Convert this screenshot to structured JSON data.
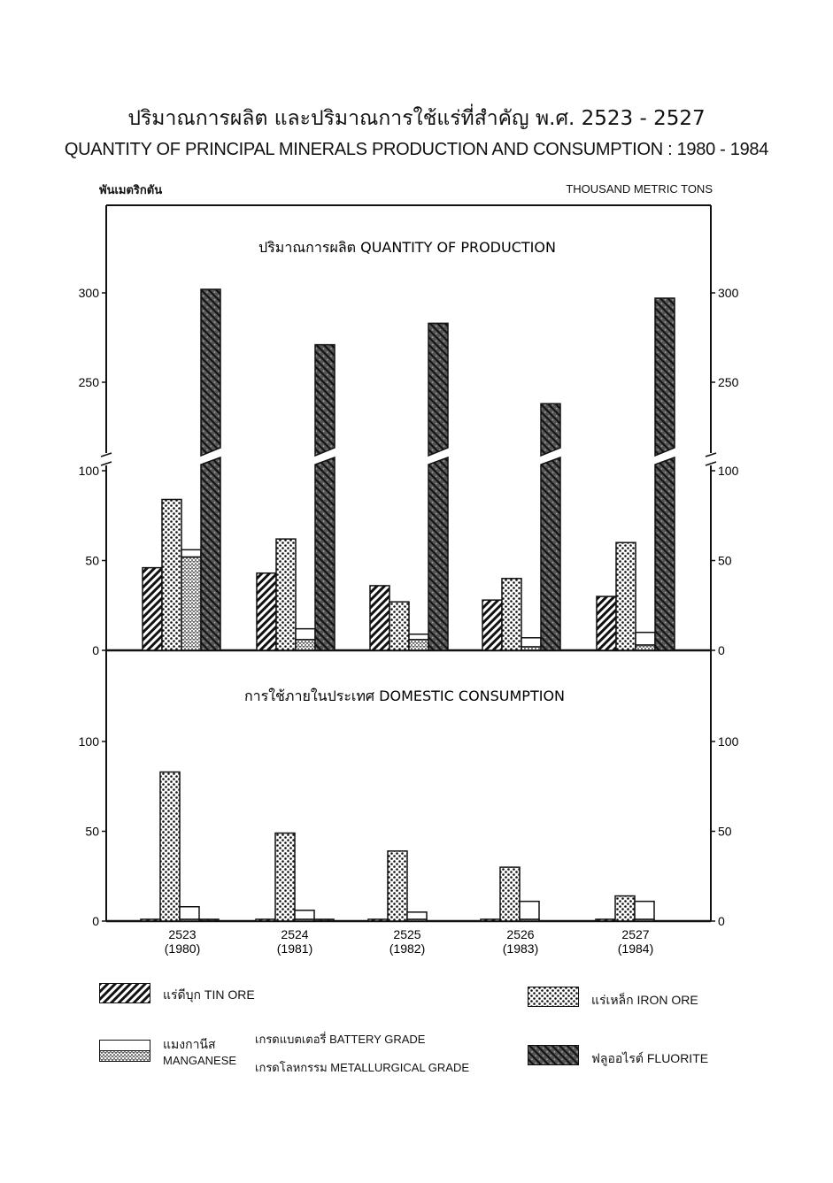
{
  "title_th": "ปริมาณการผลิต และปริมาณการใช้แร่ที่สำคัญ พ.ศ. 2523 - 2527",
  "title_en": "QUANTITY OF PRINCIPAL MINERALS PRODUCTION AND CONSUMPTION : 1980 - 1984",
  "unit_th": "พันเมตริกตัน",
  "unit_en": "THOUSAND METRIC TONS",
  "chart_data": [
    {
      "type": "bar",
      "title": "ปริมาณการผลิต  QUANTITY OF PRODUCTION",
      "categories": [
        "2523 (1980)",
        "2524 (1981)",
        "2525 (1982)",
        "2526 (1983)",
        "2527 (1984)"
      ],
      "y_ticks": [
        0,
        50,
        100,
        250,
        300
      ],
      "axis_break": [
        100,
        240
      ],
      "ylim": [
        0,
        340
      ],
      "series": [
        {
          "name": "แร่ดีบุก TIN ORE",
          "values": [
            46,
            43,
            36,
            28,
            30
          ]
        },
        {
          "name": "แร่เหล็ก IRON ORE",
          "values": [
            84,
            62,
            27,
            40,
            60
          ]
        },
        {
          "name": "แมงกานีส เกรดแบตเตอรี่ BATTERY GRADE",
          "values": [
            4,
            6,
            3,
            5,
            7
          ]
        },
        {
          "name": "แมงกานีส เกรดโลหกรรม METALLURGICAL GRADE",
          "values": [
            52,
            6,
            6,
            2,
            3
          ]
        },
        {
          "name": "ฟลูออไรต์ FLUORITE",
          "values": [
            302,
            271,
            283,
            238,
            297
          ]
        }
      ]
    },
    {
      "type": "bar",
      "title": "การใช้ภายในประเทศ  DOMESTIC CONSUMPTION",
      "categories": [
        "2523 (1980)",
        "2524 (1981)",
        "2525 (1982)",
        "2526 (1983)",
        "2527 (1984)"
      ],
      "y_ticks": [
        0,
        50,
        100
      ],
      "ylim": [
        0,
        140
      ],
      "series": [
        {
          "name": "แร่ดีบุก TIN ORE",
          "values": [
            1,
            1,
            1,
            1,
            1
          ]
        },
        {
          "name": "แร่เหล็ก IRON ORE",
          "values": [
            83,
            49,
            39,
            30,
            14
          ]
        },
        {
          "name": "แมงกานีส เกรดแบตเตอรี่ BATTERY GRADE",
          "values": [
            7,
            5,
            4,
            10,
            10
          ]
        },
        {
          "name": "แมงกานีส เกรดโลหกรรม METALLURGICAL GRADE",
          "values": [
            1,
            1,
            1,
            1,
            1
          ]
        },
        {
          "name": "ฟลูออไรต์ FLUORITE",
          "values": [
            1,
            1,
            0,
            0,
            0
          ]
        }
      ]
    }
  ],
  "x_labels": [
    {
      "th": "2523",
      "en": "(1980)"
    },
    {
      "th": "2524",
      "en": "(1981)"
    },
    {
      "th": "2525",
      "en": "(1982)"
    },
    {
      "th": "2526",
      "en": "(1983)"
    },
    {
      "th": "2527",
      "en": "(1984)"
    }
  ],
  "legend": {
    "tin": "แร่ดีบุก  TIN ORE",
    "iron": "แร่เหล็ก  IRON ORE",
    "manganese_th": "แมงกานีส",
    "manganese_en": "MANGANESE",
    "battery": "เกรดแบตเตอรี่  BATTERY GRADE",
    "metallurgical": "เกรดโลหกรรม  METALLURGICAL GRADE",
    "fluorite": "ฟลูออไรต์  FLUORITE"
  },
  "colors": {
    "ink": "#111111",
    "background": "#ffffff"
  }
}
